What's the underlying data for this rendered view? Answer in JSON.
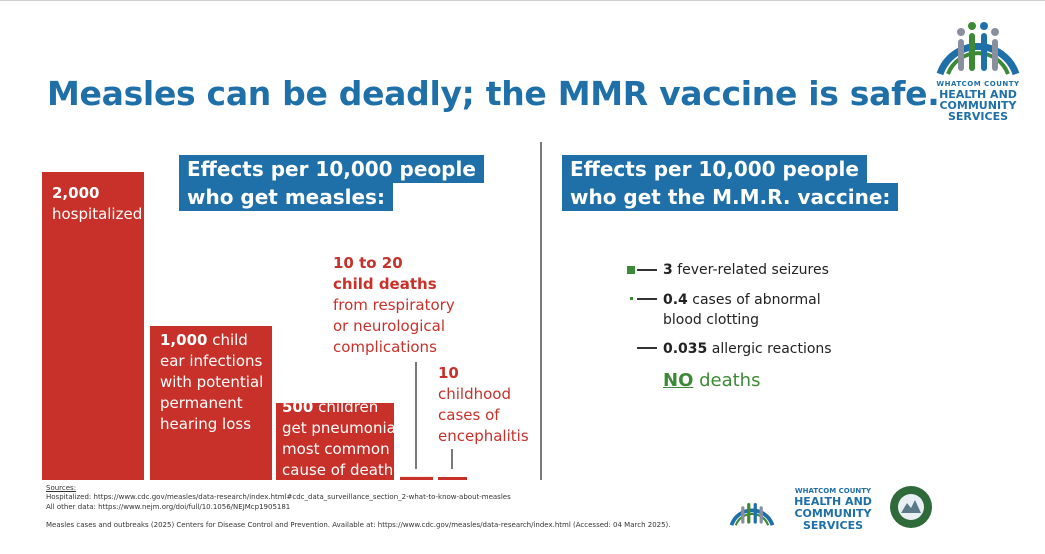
{
  "title": "Measles can be deadly; the MMR vaccine is safe.",
  "left_header": [
    "Effects per 10,000 people",
    "who get measles:"
  ],
  "right_header": [
    "Effects per 10,000 people",
    "who get the M.M.R. vaccine:"
  ],
  "colors": {
    "bar": "#c8312a",
    "header_bg": "#1f6fa8",
    "vaccine_green": "#3c8a35",
    "title": "#1f6fa8"
  },
  "chart_data": [
    {
      "type": "bar",
      "categories": [
        "hospitalized",
        "child ear infections",
        "children get pneumonia",
        "child deaths",
        "childhood cases of encephalitis"
      ],
      "values": [
        2000,
        1000,
        500,
        20,
        10
      ],
      "labels": [
        {
          "bold": "2,000",
          "text": [
            "hospitalized"
          ]
        },
        {
          "bold": "1,000",
          "rest": " child",
          "text": [
            "ear infections",
            "with potential",
            "permanent",
            "hearing loss"
          ]
        },
        {
          "bold": "500",
          "rest": " children",
          "text": [
            "get pneumonia;",
            "most common",
            "cause of death"
          ]
        },
        {
          "bold_lines": [
            "10 to 20",
            "child deaths"
          ],
          "text": [
            "from respiratory",
            "or neurological",
            "complications"
          ]
        },
        {
          "bold": "10",
          "text": [
            "childhood",
            "cases of",
            "encephalitis"
          ]
        }
      ]
    },
    {
      "type": "bar",
      "orientation": "horizontal",
      "categories": [
        "fever-related seizures",
        "cases of abnormal blood clotting",
        "allergic reactions",
        "deaths"
      ],
      "values": [
        3,
        0.4,
        0.035,
        0
      ],
      "labels": [
        {
          "bold": "3",
          "text": [
            " fever-related seizures"
          ]
        },
        {
          "bold": "0.4",
          "text": [
            " cases of abnormal",
            "blood clotting"
          ]
        },
        {
          "bold": "0.035",
          "text": [
            " allergic reactions"
          ]
        }
      ],
      "no_deaths": {
        "bold": "NO",
        "text": " deaths"
      }
    }
  ],
  "sources": {
    "title": "Sources:",
    "lines": [
      "Hospitalized: https://www.cdc.gov/measles/data-research/index.html#cdc_data_surveillance_section_2-what-to-know-about-measles",
      "All other data: https://www.nejm.org/doi/full/10.1056/NEJMcp1905181",
      "Measles cases and outbreaks (2025) Centers for Disease Control and Prevention. Available at: https://www.cdc.gov/measles/data-research/index.html (Accessed: 04 March 2025)."
    ]
  },
  "logo": {
    "lines": [
      "WHATCOM COUNTY",
      "HEALTH AND",
      "COMMUNITY",
      "SERVICES"
    ],
    "seal_text": "WHATCOM COUNTY · WASHINGTON"
  }
}
